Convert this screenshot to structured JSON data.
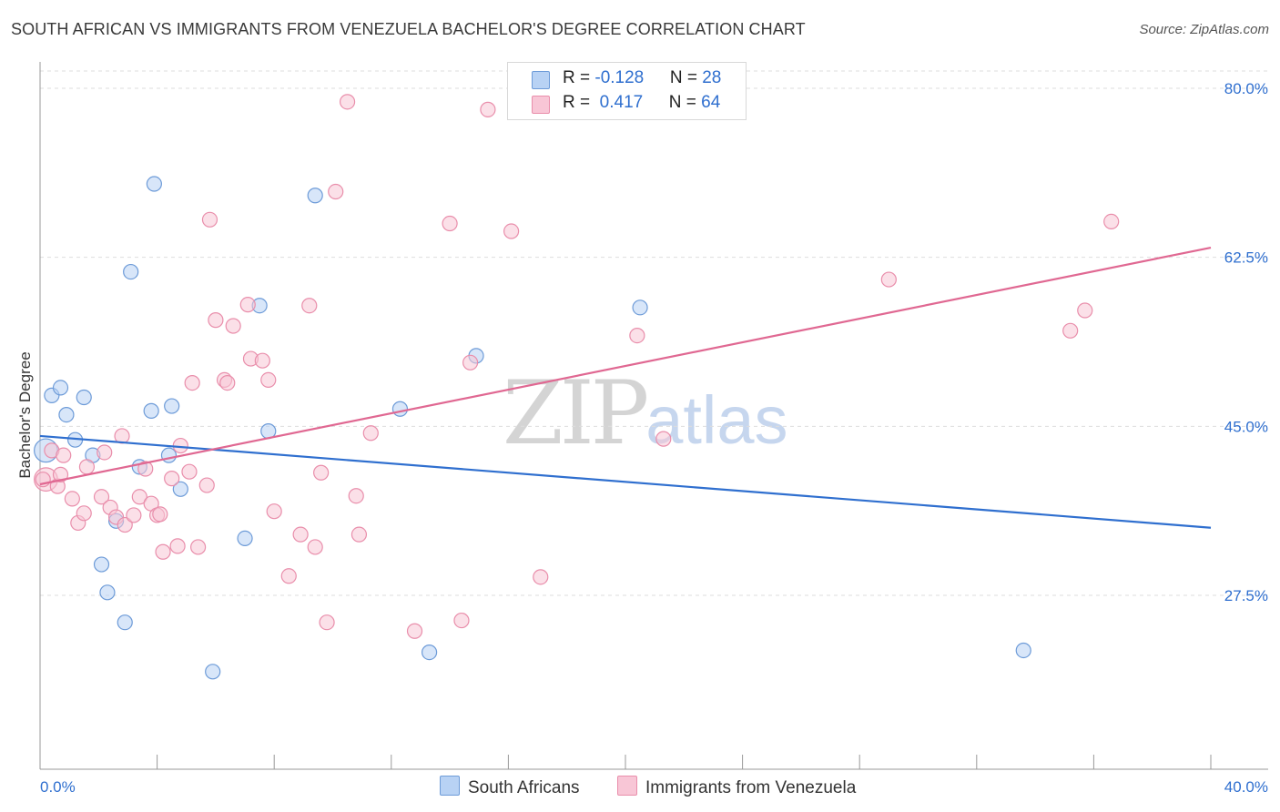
{
  "title": "SOUTH AFRICAN VS IMMIGRANTS FROM VENEZUELA BACHELOR'S DEGREE CORRELATION CHART",
  "source": "Source: ZipAtlas.com",
  "watermark": {
    "zip": "ZIP",
    "atlas": "atlas"
  },
  "legend": {
    "row1": {
      "r_label": "R = ",
      "r_value": "-0.128",
      "n_label": "N = ",
      "n_value": "28"
    },
    "row2": {
      "r_label": "R = ",
      "r_value": " 0.417",
      "n_label": "N = ",
      "n_value": "64"
    }
  },
  "bottom_legend": {
    "series1": "South Africans",
    "series2": "Immigrants from Venezuela"
  },
  "colors": {
    "blue_fill": "#b8d2f4",
    "blue_stroke": "#6d9bd8",
    "blue_line": "#2f6fcf",
    "pink_fill": "#f8c6d6",
    "pink_stroke": "#e98eab",
    "pink_line": "#e06892",
    "tick_text": "#2f6fcf",
    "grid": "#dddddd"
  },
  "chart_data": {
    "type": "scatter",
    "title": "SOUTH AFRICAN VS IMMIGRANTS FROM VENEZUELA BACHELOR'S DEGREE CORRELATION CHART",
    "xlabel": "",
    "ylabel": "Bachelor's Degree",
    "xlim": [
      0,
      40
    ],
    "ylim": [
      12,
      82.5
    ],
    "x_tick_labels": [
      {
        "value": 0,
        "label": "0.0%"
      },
      {
        "value": 40,
        "label": "40.0%"
      }
    ],
    "y_ticks": [
      {
        "value": 27.5,
        "label": "27.5%"
      },
      {
        "value": 45.0,
        "label": "45.0%"
      },
      {
        "value": 62.5,
        "label": "62.5%"
      },
      {
        "value": 80.0,
        "label": "80.0%"
      }
    ],
    "x_minor_ticks": [
      0,
      4,
      8,
      12,
      16,
      20,
      24,
      28,
      32,
      36,
      40
    ],
    "grid": true,
    "legend_position": "top-center",
    "series": [
      {
        "name": "South Africans",
        "r": -0.128,
        "n": 28,
        "trend": {
          "x": [
            0,
            40
          ],
          "y": [
            44.0,
            34.5
          ]
        },
        "points": [
          [
            0.2,
            42.5,
            1.6
          ],
          [
            0.4,
            48.2,
            1
          ],
          [
            0.7,
            49.0,
            1
          ],
          [
            0.9,
            46.2,
            1
          ],
          [
            1.2,
            43.6,
            1
          ],
          [
            1.5,
            48.0,
            1
          ],
          [
            1.8,
            42.0,
            1
          ],
          [
            2.1,
            30.7,
            1
          ],
          [
            2.3,
            27.8,
            1
          ],
          [
            2.6,
            35.2,
            1
          ],
          [
            2.9,
            24.7,
            1
          ],
          [
            3.1,
            61.0,
            1
          ],
          [
            3.4,
            40.8,
            1
          ],
          [
            3.8,
            46.6,
            1
          ],
          [
            3.9,
            70.1,
            1
          ],
          [
            4.4,
            42.0,
            1
          ],
          [
            4.5,
            47.1,
            1
          ],
          [
            4.8,
            38.5,
            1
          ],
          [
            5.9,
            19.6,
            1
          ],
          [
            7.0,
            33.4,
            1
          ],
          [
            7.5,
            57.5,
            1
          ],
          [
            7.8,
            44.5,
            1
          ],
          [
            9.4,
            68.9,
            1
          ],
          [
            12.3,
            46.8,
            1
          ],
          [
            13.3,
            21.6,
            1
          ],
          [
            14.9,
            52.3,
            1
          ],
          [
            20.5,
            57.3,
            1
          ],
          [
            33.6,
            21.8,
            1
          ]
        ]
      },
      {
        "name": "Immigrants from Venezuela",
        "r": 0.417,
        "n": 64,
        "trend": {
          "x": [
            0,
            40
          ],
          "y": [
            39.0,
            63.5
          ]
        },
        "points": [
          [
            0.2,
            39.5,
            1.6
          ],
          [
            0.4,
            42.5,
            1
          ],
          [
            0.6,
            38.8,
            1
          ],
          [
            0.7,
            40.0,
            1
          ],
          [
            0.8,
            42.0,
            1
          ],
          [
            1.1,
            37.5,
            1
          ],
          [
            1.3,
            35.0,
            1
          ],
          [
            1.5,
            36.0,
            1
          ],
          [
            1.6,
            40.8,
            1
          ],
          [
            2.1,
            37.7,
            1
          ],
          [
            2.2,
            42.3,
            1
          ],
          [
            2.4,
            36.6,
            1
          ],
          [
            2.6,
            35.6,
            1
          ],
          [
            2.8,
            44.0,
            1
          ],
          [
            2.9,
            34.8,
            1
          ],
          [
            3.2,
            35.8,
            1
          ],
          [
            3.4,
            37.7,
            1
          ],
          [
            3.6,
            40.6,
            1
          ],
          [
            3.8,
            37.0,
            1
          ],
          [
            4.0,
            35.8,
            1
          ],
          [
            4.1,
            35.9,
            1
          ],
          [
            4.2,
            32.0,
            1
          ],
          [
            4.5,
            39.6,
            1
          ],
          [
            4.7,
            32.6,
            1
          ],
          [
            4.8,
            43.0,
            1
          ],
          [
            5.1,
            40.3,
            1
          ],
          [
            5.2,
            49.5,
            1
          ],
          [
            5.4,
            32.5,
            1
          ],
          [
            5.7,
            38.9,
            1
          ],
          [
            5.8,
            66.4,
            1
          ],
          [
            6.0,
            56.0,
            1
          ],
          [
            6.3,
            49.8,
            1
          ],
          [
            6.4,
            49.5,
            1
          ],
          [
            6.6,
            55.4,
            1
          ],
          [
            7.1,
            57.6,
            1
          ],
          [
            7.2,
            52.0,
            1
          ],
          [
            7.6,
            51.8,
            1
          ],
          [
            7.8,
            49.8,
            1
          ],
          [
            8.0,
            36.2,
            1
          ],
          [
            8.5,
            29.5,
            1
          ],
          [
            8.9,
            33.8,
            1
          ],
          [
            9.2,
            57.5,
            1
          ],
          [
            9.4,
            32.5,
            1
          ],
          [
            9.6,
            40.2,
            1
          ],
          [
            9.8,
            24.7,
            1
          ],
          [
            10.1,
            69.3,
            1
          ],
          [
            10.5,
            78.6,
            1
          ],
          [
            10.8,
            37.8,
            1
          ],
          [
            10.9,
            33.8,
            1
          ],
          [
            11.3,
            44.3,
            1
          ],
          [
            12.8,
            23.8,
            1
          ],
          [
            14.0,
            66.0,
            1
          ],
          [
            14.4,
            24.9,
            1
          ],
          [
            14.7,
            51.6,
            1
          ],
          [
            15.3,
            77.8,
            1
          ],
          [
            16.1,
            65.2,
            1
          ],
          [
            17.1,
            29.4,
            1
          ],
          [
            20.4,
            54.4,
            1
          ],
          [
            21.3,
            43.7,
            1
          ],
          [
            29.0,
            60.2,
            1
          ],
          [
            35.2,
            54.9,
            1
          ],
          [
            35.7,
            57.0,
            1
          ],
          [
            36.6,
            66.2,
            1
          ],
          [
            0.1,
            39.5,
            1
          ]
        ]
      }
    ]
  }
}
